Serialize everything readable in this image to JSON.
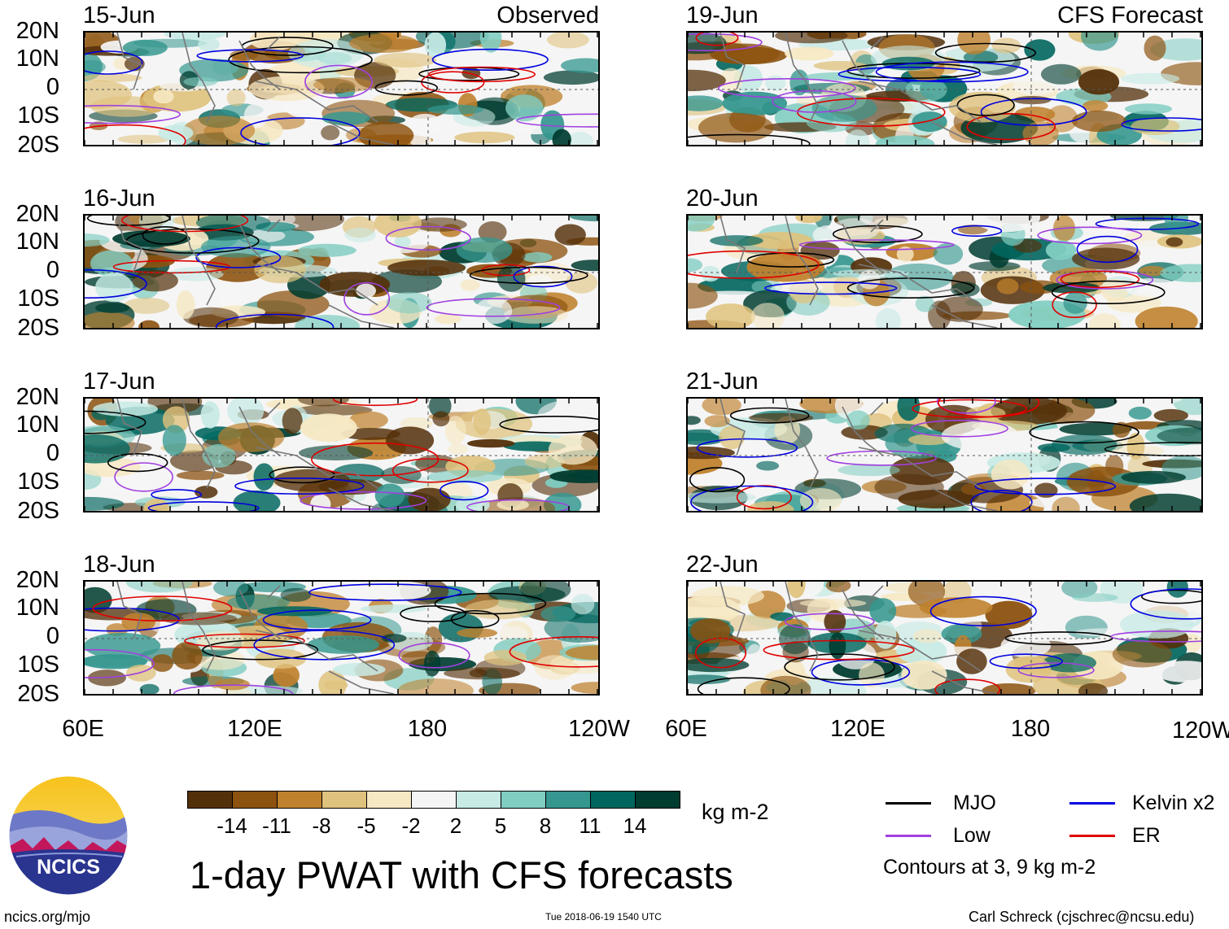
{
  "figure": {
    "title": "1-day PWAT with CFS forecasts",
    "units": "kg m-2",
    "contour_note": "Contours at 3, 9 kg m-2",
    "site": "ncics.org/mjo",
    "timestamp": "Tue 2018-06-19 1540 UTC",
    "credit": "Carl Schreck (cjschrec@ncsu.edu)",
    "logo_text": "NCICS"
  },
  "labels": {
    "observed": "Observed",
    "forecast": "CFS Forecast"
  },
  "left_panels": [
    {
      "date": "15-Jun",
      "kind": "observed"
    },
    {
      "date": "16-Jun",
      "kind": "observed"
    },
    {
      "date": "17-Jun",
      "kind": "observed"
    },
    {
      "date": "18-Jun",
      "kind": "observed"
    }
  ],
  "right_panels": [
    {
      "date": "19-Jun",
      "kind": "forecast"
    },
    {
      "date": "20-Jun",
      "kind": "forecast"
    },
    {
      "date": "21-Jun",
      "kind": "forecast"
    },
    {
      "date": "22-Jun",
      "kind": "forecast"
    }
  ],
  "y_ticks": [
    "20N",
    "10N",
    "0",
    "10S",
    "20S"
  ],
  "x_ticks": [
    "60E",
    "120E",
    "180",
    "120W"
  ],
  "colorbar": {
    "colors": [
      "#54300a",
      "#8c520f",
      "#bf812d",
      "#dfc27d",
      "#f6e8c3",
      "#f5f5f5",
      "#c7eae5",
      "#80cdc1",
      "#35978f",
      "#01665e",
      "#003c30"
    ],
    "labels": [
      "-14",
      "-11",
      "-8",
      "-5",
      "-2",
      "2",
      "5",
      "8",
      "11",
      "14"
    ]
  },
  "legend": [
    {
      "name": "MJO",
      "color": "#000000"
    },
    {
      "name": "Kelvin x2",
      "color": "#0000e0"
    },
    {
      "name": "Low",
      "color": "#a040e0"
    },
    {
      "name": "ER",
      "color": "#e00000"
    }
  ]
}
